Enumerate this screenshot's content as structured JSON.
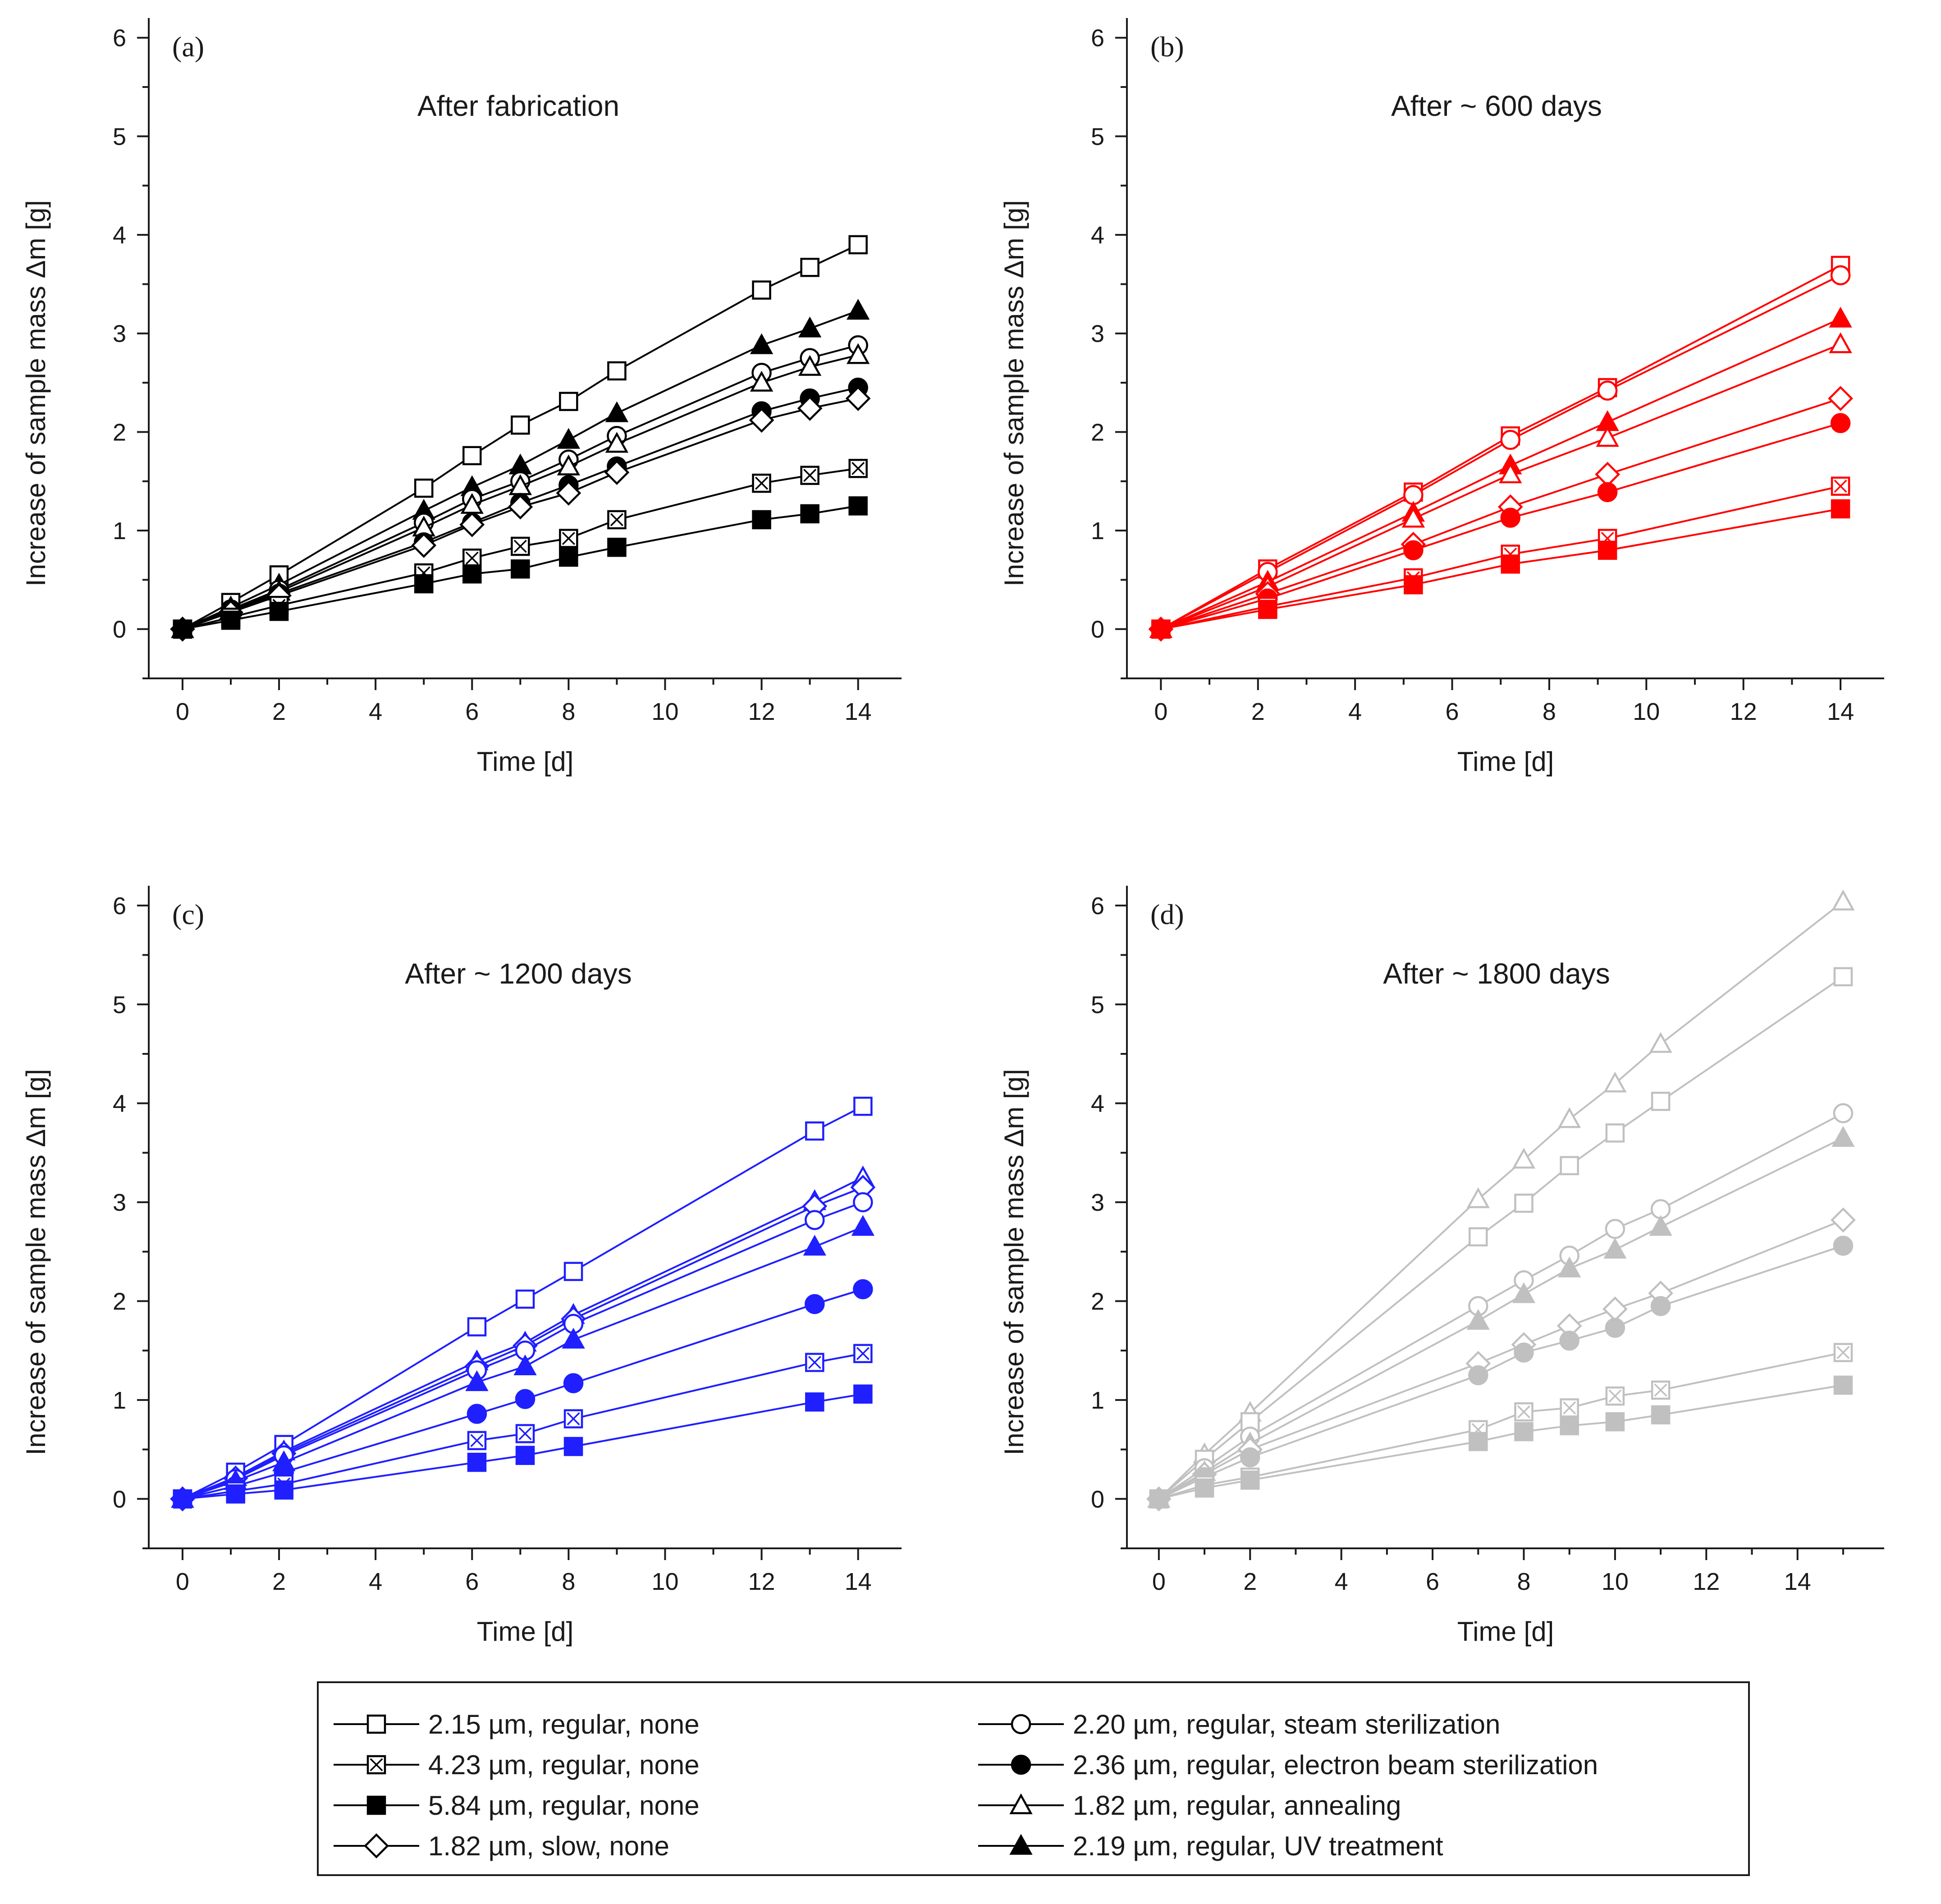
{
  "legend": {
    "entries": [
      {
        "label": "2.15 µm, regular, none",
        "marker": "square-open"
      },
      {
        "label": "2.20 µm, regular, steam sterilization",
        "marker": "circle-open"
      },
      {
        "label": "4.23 µm, regular, none",
        "marker": "square-crossed"
      },
      {
        "label": "2.36 µm, regular, electron beam sterilization",
        "marker": "circle-filled"
      },
      {
        "label": "5.84 µm, regular, none",
        "marker": "square-filled"
      },
      {
        "label": "1.82 µm, regular, annealing",
        "marker": "triangle-open"
      },
      {
        "label": "1.82 µm, slow, none",
        "marker": "diamond-open"
      },
      {
        "label": "2.19 µm, regular, UV treatment",
        "marker": "triangle-filled"
      }
    ]
  },
  "chart_data": [
    {
      "type": "line",
      "panel_label": "(a)",
      "title": "After fabrication",
      "color": "#000000",
      "xlabel": "Time [d]",
      "ylabel": "Increase of sample mass Δm [g]",
      "xlim": [
        -0.7,
        14.9
      ],
      "ylim": [
        -0.5,
        6.2
      ],
      "xticks": [
        0,
        2,
        4,
        6,
        8,
        10,
        12,
        14
      ],
      "yticks": [
        0,
        1,
        2,
        3,
        4,
        5,
        6
      ],
      "x": [
        0,
        1,
        2,
        5,
        6,
        7,
        8,
        9,
        12,
        13,
        14
      ],
      "series": [
        {
          "name": "2.15 µm, regular, none",
          "marker": "square-open",
          "values": [
            0,
            0.27,
            0.55,
            1.43,
            1.76,
            2.07,
            2.31,
            2.62,
            3.44,
            3.67,
            3.9
          ]
        },
        {
          "name": "2.19 µm, regular, UV treatment",
          "marker": "triangle-filled",
          "values": [
            0,
            0.22,
            0.45,
            1.2,
            1.44,
            1.66,
            1.92,
            2.19,
            2.88,
            3.05,
            3.23
          ]
        },
        {
          "name": "2.20 µm, regular, steam sterilization",
          "marker": "circle-open",
          "values": [
            0,
            0.2,
            0.4,
            1.08,
            1.32,
            1.5,
            1.72,
            1.96,
            2.6,
            2.75,
            2.88
          ]
        },
        {
          "name": "1.82 µm, regular, annealing",
          "marker": "triangle-open",
          "values": [
            0,
            0.19,
            0.38,
            1.03,
            1.26,
            1.45,
            1.65,
            1.88,
            2.5,
            2.66,
            2.78
          ]
        },
        {
          "name": "2.36 µm, regular, electron beam sterilization",
          "marker": "circle-filled",
          "values": [
            0,
            0.18,
            0.36,
            0.88,
            1.08,
            1.28,
            1.46,
            1.65,
            2.21,
            2.34,
            2.45
          ]
        },
        {
          "name": "1.82 µm, slow, none",
          "marker": "diamond-open",
          "values": [
            0,
            0.17,
            0.34,
            0.85,
            1.06,
            1.24,
            1.38,
            1.59,
            2.12,
            2.24,
            2.34
          ]
        },
        {
          "name": "4.23 µm, regular, none",
          "marker": "square-crossed",
          "values": [
            0,
            0.12,
            0.24,
            0.57,
            0.72,
            0.84,
            0.92,
            1.11,
            1.48,
            1.56,
            1.63
          ]
        },
        {
          "name": "5.84 µm, regular, none",
          "marker": "square-filled",
          "values": [
            0,
            0.09,
            0.18,
            0.46,
            0.56,
            0.61,
            0.73,
            0.83,
            1.11,
            1.17,
            1.25
          ]
        }
      ]
    },
    {
      "type": "line",
      "panel_label": "(b)",
      "title": "After ~ 600 days",
      "color": "#ff0000",
      "xlabel": "Time [d]",
      "ylabel": "Increase of sample mass Δm [g]",
      "xlim": [
        -0.7,
        14.9
      ],
      "ylim": [
        -0.5,
        6.2
      ],
      "xticks": [
        0,
        2,
        4,
        6,
        8,
        10,
        12,
        14
      ],
      "yticks": [
        0,
        1,
        2,
        3,
        4,
        5,
        6
      ],
      "x": [
        0,
        2.2,
        5.2,
        7.2,
        9.2,
        14
      ],
      "series": [
        {
          "name": "2.15 µm, regular, none",
          "marker": "square-open",
          "values": [
            0,
            0.61,
            1.39,
            1.96,
            2.45,
            3.69
          ]
        },
        {
          "name": "2.20 µm, regular, steam sterilization",
          "marker": "circle-open",
          "values": [
            0,
            0.58,
            1.36,
            1.92,
            2.42,
            3.59
          ]
        },
        {
          "name": "2.19 µm, regular, UV treatment",
          "marker": "triangle-filled",
          "values": [
            0,
            0.48,
            1.18,
            1.66,
            2.1,
            3.15
          ]
        },
        {
          "name": "1.82 µm, regular, annealing",
          "marker": "triangle-open",
          "values": [
            0,
            0.43,
            1.12,
            1.57,
            1.94,
            2.89
          ]
        },
        {
          "name": "1.82 µm, slow, none",
          "marker": "diamond-open",
          "values": [
            0,
            0.36,
            0.86,
            1.24,
            1.57,
            2.34
          ]
        },
        {
          "name": "2.36 µm, regular, electron beam sterilization",
          "marker": "circle-filled",
          "values": [
            0,
            0.31,
            0.8,
            1.13,
            1.39,
            2.09
          ]
        },
        {
          "name": "4.23 µm, regular, none",
          "marker": "square-crossed",
          "values": [
            0,
            0.23,
            0.52,
            0.76,
            0.92,
            1.45
          ]
        },
        {
          "name": "5.84 µm, regular, none",
          "marker": "square-filled",
          "values": [
            0,
            0.2,
            0.45,
            0.66,
            0.8,
            1.22
          ]
        }
      ]
    },
    {
      "type": "line",
      "panel_label": "(c)",
      "title": "After ~ 1200 days",
      "color": "#1f1fff",
      "xlabel": "Time [d]",
      "ylabel": "Increase of sample mass Δm [g]",
      "xlim": [
        -0.7,
        14.9
      ],
      "ylim": [
        -0.5,
        6.2
      ],
      "xticks": [
        0,
        2,
        4,
        6,
        8,
        10,
        12,
        14
      ],
      "yticks": [
        0,
        1,
        2,
        3,
        4,
        5,
        6
      ],
      "x": [
        0,
        1.1,
        2.1,
        6.1,
        7.1,
        8.1,
        13.1,
        14.1
      ],
      "series": [
        {
          "name": "2.15 µm, regular, none",
          "marker": "square-open",
          "values": [
            0,
            0.27,
            0.55,
            1.74,
            2.02,
            2.3,
            3.72,
            3.97
          ]
        },
        {
          "name": "1.82 µm, regular, annealing",
          "marker": "triangle-open",
          "values": [
            0,
            0.22,
            0.48,
            1.39,
            1.58,
            1.86,
            3.01,
            3.25
          ]
        },
        {
          "name": "1.82 µm, slow, none",
          "marker": "diamond-open",
          "values": [
            0,
            0.21,
            0.46,
            1.34,
            1.55,
            1.82,
            2.96,
            3.15
          ]
        },
        {
          "name": "2.20 µm, regular, steam sterilization",
          "marker": "circle-open",
          "values": [
            0,
            0.2,
            0.44,
            1.3,
            1.5,
            1.77,
            2.82,
            3.0
          ]
        },
        {
          "name": "2.19 µm, regular, UV treatment",
          "marker": "triangle-filled",
          "values": [
            0,
            0.18,
            0.37,
            1.18,
            1.34,
            1.61,
            2.55,
            2.75
          ]
        },
        {
          "name": "2.36 µm, regular, electron beam sterilization",
          "marker": "circle-filled",
          "values": [
            0,
            0.13,
            0.27,
            0.86,
            1.01,
            1.17,
            1.97,
            2.12
          ]
        },
        {
          "name": "4.23 µm, regular, none",
          "marker": "square-crossed",
          "values": [
            0,
            0.08,
            0.15,
            0.59,
            0.66,
            0.81,
            1.38,
            1.47
          ]
        },
        {
          "name": "5.84 µm, regular, none",
          "marker": "square-filled",
          "values": [
            0,
            0.05,
            0.09,
            0.37,
            0.44,
            0.53,
            0.98,
            1.06
          ]
        }
      ]
    },
    {
      "type": "line",
      "panel_label": "(d)",
      "title": "After ~ 1800 days",
      "color": "#c0c0c0",
      "xlabel": "Time [d]",
      "ylabel": "Increase of sample mass Δm [g]",
      "xlim": [
        -0.7,
        15.9
      ],
      "ylim": [
        -0.5,
        6.2
      ],
      "xticks": [
        0,
        2,
        4,
        6,
        8,
        10,
        12,
        14
      ],
      "yticks": [
        0,
        1,
        2,
        3,
        4,
        5,
        6
      ],
      "x": [
        0,
        1,
        2,
        7,
        8,
        9,
        10,
        11,
        15
      ],
      "series": [
        {
          "name": "1.82 µm, regular, annealing",
          "marker": "triangle-open",
          "values": [
            0,
            0.45,
            0.87,
            3.03,
            3.43,
            3.84,
            4.2,
            4.6,
            6.04
          ]
        },
        {
          "name": "2.15 µm, regular, none",
          "marker": "square-open",
          "values": [
            0,
            0.4,
            0.78,
            2.65,
            2.99,
            3.37,
            3.7,
            4.02,
            5.28
          ]
        },
        {
          "name": "2.20 µm, regular, steam sterilization",
          "marker": "circle-open",
          "values": [
            0,
            0.31,
            0.63,
            1.95,
            2.21,
            2.46,
            2.73,
            2.93,
            3.9
          ]
        },
        {
          "name": "2.19 µm, regular, UV treatment",
          "marker": "triangle-filled",
          "values": [
            0,
            0.27,
            0.56,
            1.8,
            2.07,
            2.33,
            2.52,
            2.75,
            3.65
          ]
        },
        {
          "name": "1.82 µm, slow, none",
          "marker": "diamond-open",
          "values": [
            0,
            0.25,
            0.5,
            1.37,
            1.56,
            1.75,
            1.92,
            2.08,
            2.82
          ]
        },
        {
          "name": "2.36 µm, regular, electron beam sterilization",
          "marker": "circle-filled",
          "values": [
            0,
            0.22,
            0.42,
            1.25,
            1.48,
            1.6,
            1.73,
            1.95,
            2.56
          ]
        },
        {
          "name": "4.23 µm, regular, none",
          "marker": "square-crossed",
          "values": [
            0,
            0.14,
            0.22,
            0.7,
            0.88,
            0.92,
            1.04,
            1.1,
            1.48
          ]
        },
        {
          "name": "5.84 µm, regular, none",
          "marker": "square-filled",
          "values": [
            0,
            0.11,
            0.19,
            0.58,
            0.68,
            0.74,
            0.78,
            0.85,
            1.15
          ]
        }
      ]
    }
  ]
}
